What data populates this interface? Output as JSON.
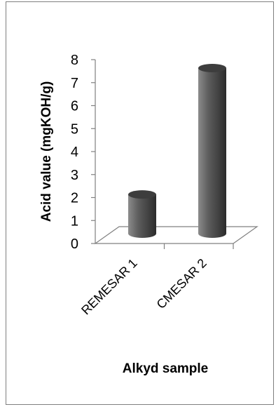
{
  "chart_data": {
    "type": "bar",
    "style": "3d-cylinder",
    "categories": [
      "REMESAR 1",
      "CMESAR 2"
    ],
    "series": [
      {
        "values": [
          2.5,
          8.0
        ]
      }
    ],
    "ylabel": "Acid value (mgKOH/g)",
    "xlabel": "Alkyd sample",
    "ylim": [
      0,
      8
    ],
    "yticks": [
      "0",
      "1",
      "2",
      "3",
      "4",
      "5",
      "6",
      "7",
      "8"
    ],
    "grid": false,
    "legend": "none",
    "colors": {
      "bar_light": "#8c8c8c",
      "bar_mid": "#5e5e5e",
      "bar_dark": "#2b2b2b",
      "bar_top": "#3d3d3d",
      "axis": "#808080",
      "frame": "#7f7f7f"
    }
  }
}
